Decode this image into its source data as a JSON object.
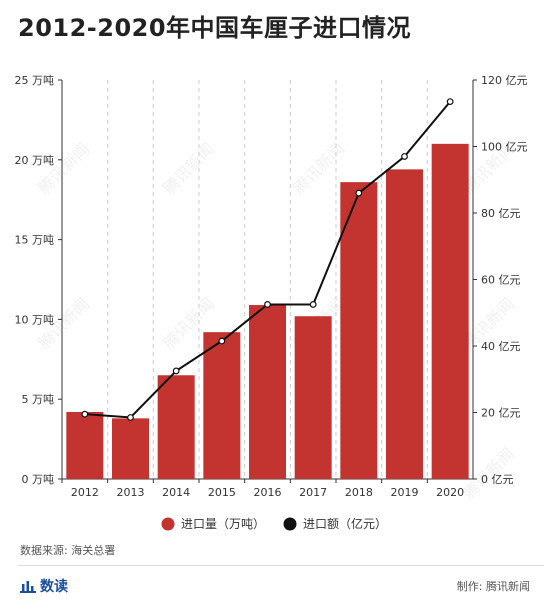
{
  "chart_data": {
    "type": "bar",
    "title": "2012-2020年中国车厘子进口情况",
    "categories": [
      "2012",
      "2013",
      "2014",
      "2015",
      "2016",
      "2017",
      "2018",
      "2019",
      "2020"
    ],
    "series": [
      {
        "name": "进口量（万吨）",
        "type": "bar",
        "axis": "left",
        "values": [
          4.2,
          3.8,
          6.5,
          9.2,
          10.9,
          10.2,
          18.6,
          19.4,
          21.0
        ]
      },
      {
        "name": "进口额（亿元）",
        "type": "line",
        "axis": "right",
        "values": [
          19.5,
          18.5,
          32.5,
          41.5,
          52.5,
          52.5,
          86.0,
          97.0,
          113.5
        ]
      }
    ],
    "y_left": {
      "unit": "万吨",
      "ylim": [
        0,
        25
      ],
      "ticks": [
        0,
        5,
        10,
        15,
        20,
        25
      ]
    },
    "y_right": {
      "unit": "亿元",
      "ylim": [
        0,
        120
      ],
      "ticks": [
        0,
        20,
        40,
        60,
        80,
        100,
        120
      ]
    },
    "legend_position": "bottom-center",
    "colors": {
      "bar": "#c33431",
      "line": "#111111"
    },
    "watermark": "腾讯新闻"
  },
  "footer": {
    "source": "数据来源: 海关总署",
    "brand": "数读",
    "credit": "制作: 腾讯新闻"
  }
}
